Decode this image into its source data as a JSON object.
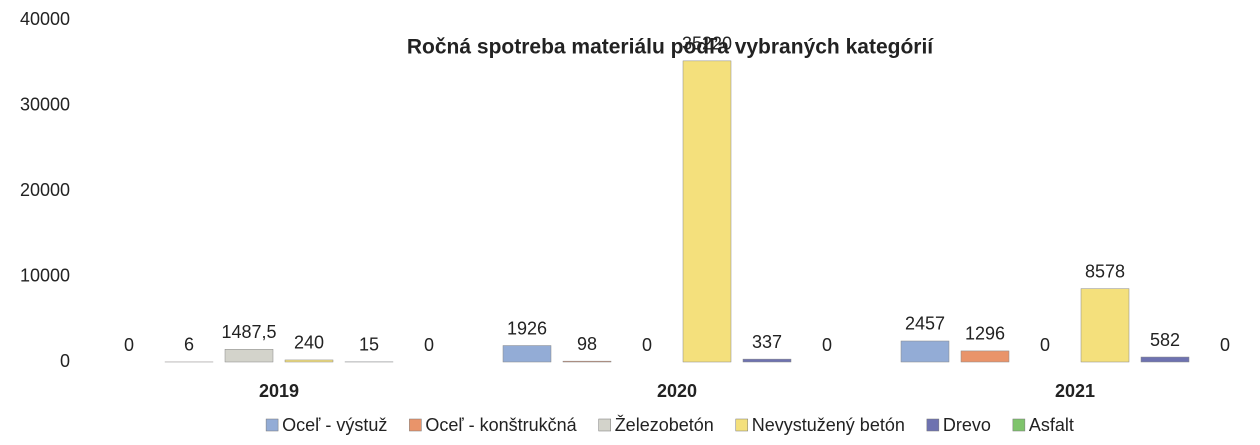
{
  "chart_data": {
    "type": "bar",
    "title": "Ročná spotreba materiálu podľa vybraných kategórií",
    "categories": [
      "2019",
      "2020",
      "2021"
    ],
    "series": [
      {
        "name": "Oceľ - výstuž",
        "color": "#93acd6",
        "values": [
          0,
          1926,
          2457
        ]
      },
      {
        "name": "Oceľ - konštrukčná",
        "color": "#e9946a",
        "values": [
          6,
          98,
          1296
        ]
      },
      {
        "name": "Železobetón",
        "color": "#d3d3cb",
        "values": [
          1487.5,
          0,
          0
        ],
        "value_labels": [
          "1487,5",
          "0",
          "0"
        ]
      },
      {
        "name": "Nevystužený betón",
        "color": "#f4e07c",
        "values": [
          240,
          35220,
          8578
        ]
      },
      {
        "name": "Drevo",
        "color": "#6e72b0",
        "values": [
          15,
          337,
          582
        ]
      },
      {
        "name": "Asfalt",
        "color": "#7fc46c",
        "values": [
          0,
          0,
          0
        ]
      }
    ],
    "ylim": [
      0,
      40000
    ],
    "yticks": [
      0,
      10000,
      20000,
      30000,
      40000
    ],
    "grid": false
  }
}
